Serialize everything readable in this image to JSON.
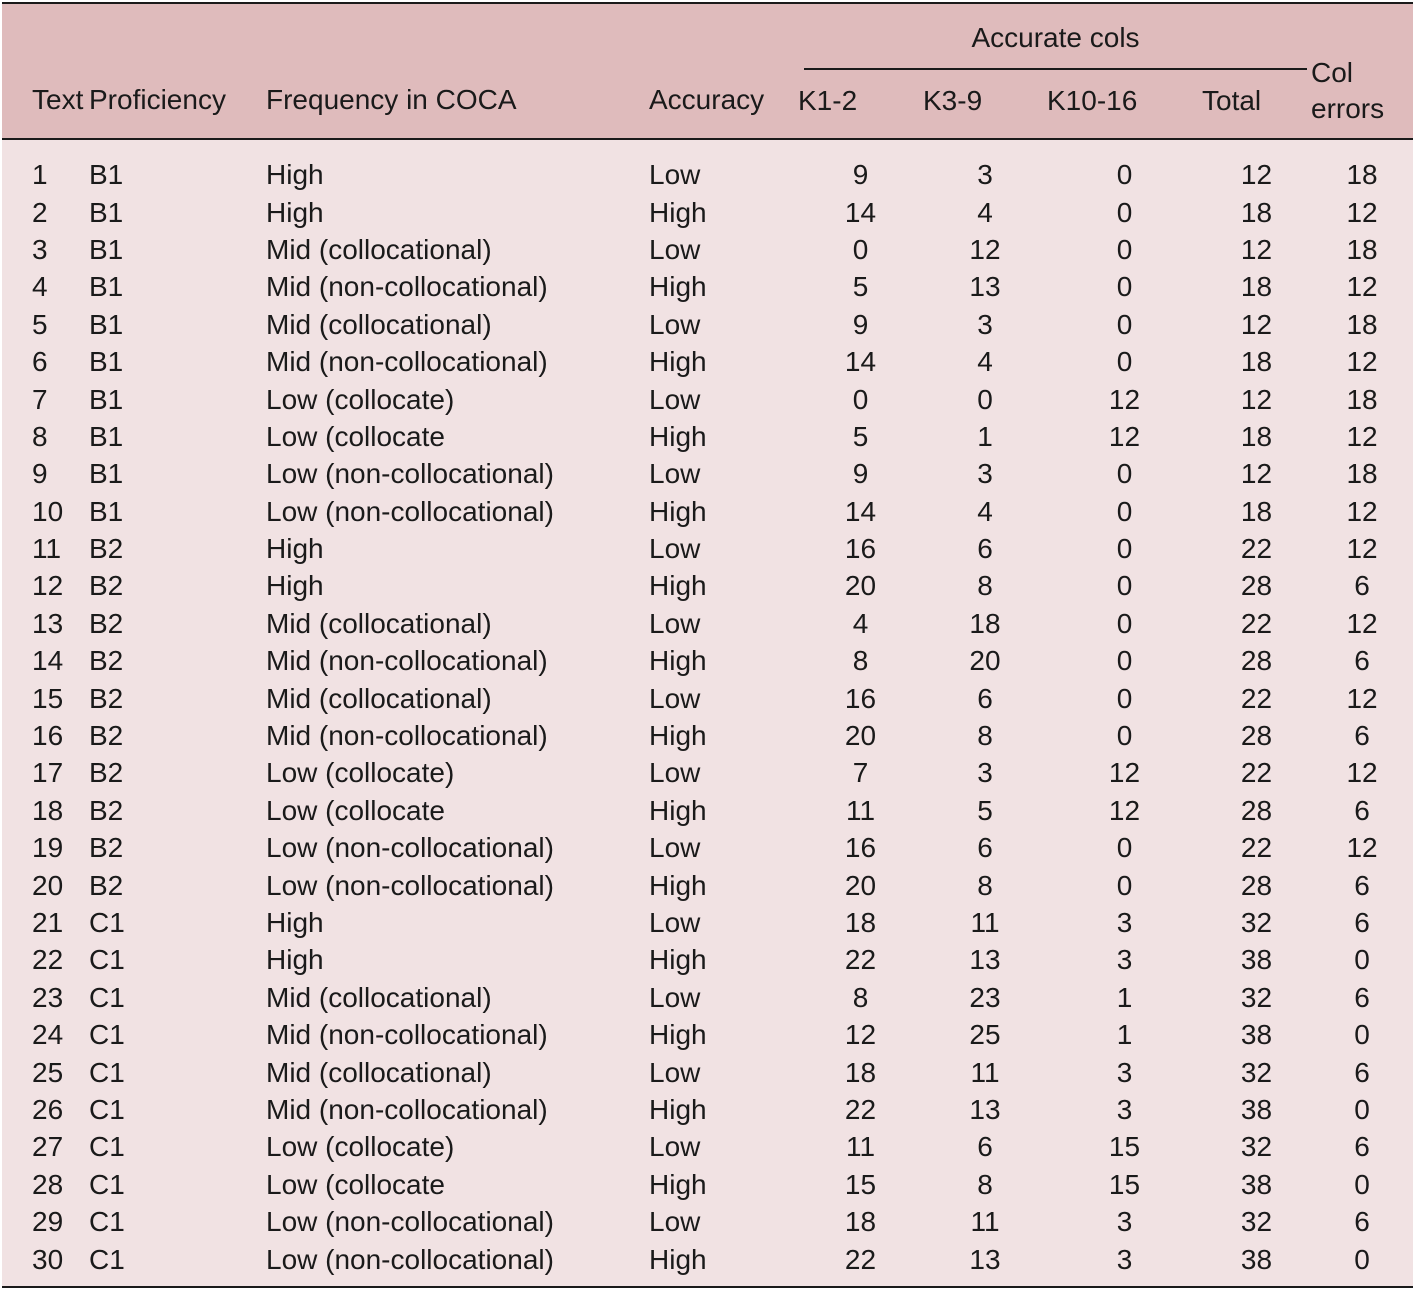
{
  "table": {
    "group_header": "Accurate cols",
    "headers": {
      "text": "Text",
      "proficiency": "Proficiency",
      "frequency": "Frequency in COCA",
      "accuracy": "Accuracy",
      "k1_2": "K1-2",
      "k3_9": "K3-9",
      "k10_16": "K10-16",
      "total": "Total",
      "col_errors_line1": "Col",
      "col_errors_line2": "errors"
    },
    "rows": [
      [
        "1",
        "B1",
        "High",
        "Low",
        "9",
        "3",
        "0",
        "12",
        "18"
      ],
      [
        "2",
        "B1",
        "High",
        "High",
        "14",
        "4",
        "0",
        "18",
        "12"
      ],
      [
        "3",
        "B1",
        "Mid (collocational)",
        "Low",
        "0",
        "12",
        "0",
        "12",
        "18"
      ],
      [
        "4",
        "B1",
        "Mid (non-collocational)",
        "High",
        "5",
        "13",
        "0",
        "18",
        "12"
      ],
      [
        "5",
        "B1",
        "Mid (collocational)",
        "Low",
        "9",
        "3",
        "0",
        "12",
        "18"
      ],
      [
        "6",
        "B1",
        "Mid (non-collocational)",
        "High",
        "14",
        "4",
        "0",
        "18",
        "12"
      ],
      [
        "7",
        "B1",
        "Low (collocate)",
        "Low",
        "0",
        "0",
        "12",
        "12",
        "18"
      ],
      [
        "8",
        "B1",
        "Low (collocate",
        "High",
        "5",
        "1",
        "12",
        "18",
        "12"
      ],
      [
        "9",
        "B1",
        "Low (non-collocational)",
        "Low",
        "9",
        "3",
        "0",
        "12",
        "18"
      ],
      [
        "10",
        "B1",
        "Low (non-collocational)",
        "High",
        "14",
        "4",
        "0",
        "18",
        "12"
      ],
      [
        "11",
        "B2",
        "High",
        "Low",
        "16",
        "6",
        "0",
        "22",
        "12"
      ],
      [
        "12",
        "B2",
        "High",
        "High",
        "20",
        "8",
        "0",
        "28",
        "6"
      ],
      [
        "13",
        "B2",
        "Mid (collocational)",
        "Low",
        "4",
        "18",
        "0",
        "22",
        "12"
      ],
      [
        "14",
        "B2",
        "Mid (non-collocational)",
        "High",
        "8",
        "20",
        "0",
        "28",
        "6"
      ],
      [
        "15",
        "B2",
        "Mid (collocational)",
        "Low",
        "16",
        "6",
        "0",
        "22",
        "12"
      ],
      [
        "16",
        "B2",
        "Mid (non-collocational)",
        "High",
        "20",
        "8",
        "0",
        "28",
        "6"
      ],
      [
        "17",
        "B2",
        "Low (collocate)",
        "Low",
        "7",
        "3",
        "12",
        "22",
        "12"
      ],
      [
        "18",
        "B2",
        "Low (collocate",
        "High",
        "11",
        "5",
        "12",
        "28",
        "6"
      ],
      [
        "19",
        "B2",
        "Low (non-collocational)",
        "Low",
        "16",
        "6",
        "0",
        "22",
        "12"
      ],
      [
        "20",
        "B2",
        "Low (non-collocational)",
        "High",
        "20",
        "8",
        "0",
        "28",
        "6"
      ],
      [
        "21",
        "C1",
        "High",
        "Low",
        "18",
        "11",
        "3",
        "32",
        "6"
      ],
      [
        "22",
        "C1",
        "High",
        "High",
        "22",
        "13",
        "3",
        "38",
        "0"
      ],
      [
        "23",
        "C1",
        "Mid (collocational)",
        "Low",
        "8",
        "23",
        "1",
        "32",
        "6"
      ],
      [
        "24",
        "C1",
        "Mid (non-collocational)",
        "High",
        "12",
        "25",
        "1",
        "38",
        "0"
      ],
      [
        "25",
        "C1",
        "Mid (collocational)",
        "Low",
        "18",
        "11",
        "3",
        "32",
        "6"
      ],
      [
        "26",
        "C1",
        "Mid (non-collocational)",
        "High",
        "22",
        "13",
        "3",
        "38",
        "0"
      ],
      [
        "27",
        "C1",
        "Low (collocate)",
        "Low",
        "11",
        "6",
        "15",
        "32",
        "6"
      ],
      [
        "28",
        "C1",
        "Low (collocate",
        "High",
        "15",
        "8",
        "15",
        "38",
        "0"
      ],
      [
        "29",
        "C1",
        "Low (non-collocational)",
        "Low",
        "18",
        "11",
        "3",
        "32",
        "6"
      ],
      [
        "30",
        "C1",
        "Low (non-collocational)",
        "High",
        "22",
        "13",
        "3",
        "38",
        "0"
      ]
    ]
  },
  "colors": {
    "header_bg": "#dfbbbc",
    "body_bg": "#f1e2e3",
    "rule": "#1a1a1a"
  }
}
